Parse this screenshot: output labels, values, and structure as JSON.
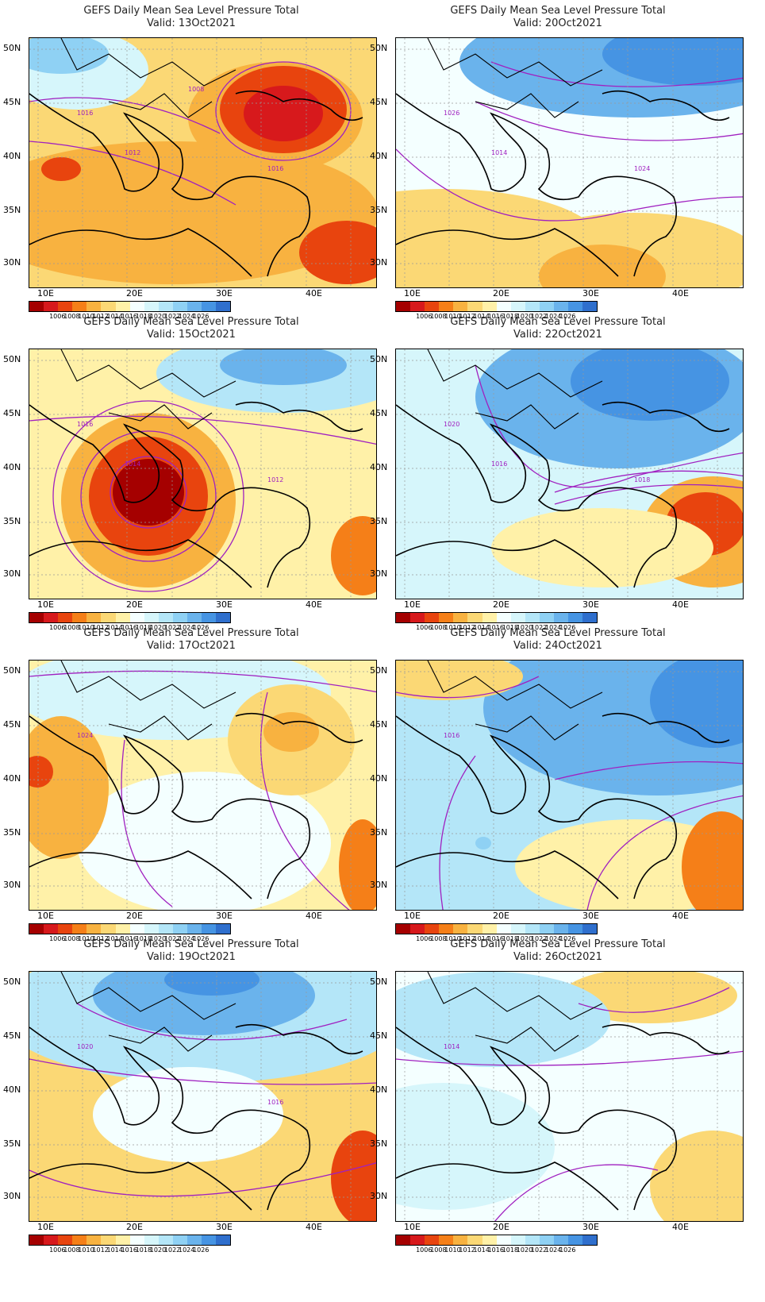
{
  "title_line1": "GEFS Daily Mean Sea Level Pressure Total",
  "panels": [
    {
      "valid": "Valid: 13Oct2021",
      "theme": "warm_ne_low",
      "labels": [
        "1016",
        "1016",
        "1012",
        "1008"
      ]
    },
    {
      "valid": "Valid: 20Oct2021",
      "theme": "cool_north",
      "labels": [
        "1026",
        "1024",
        "1014"
      ]
    },
    {
      "valid": "Valid: 15Oct2021",
      "theme": "greek_low",
      "labels": [
        "1016",
        "1012",
        "1014"
      ]
    },
    {
      "valid": "Valid: 22Oct2021",
      "theme": "cool_nw_low_se",
      "labels": [
        "1020",
        "1018",
        "1016"
      ]
    },
    {
      "valid": "Valid: 17Oct2021",
      "theme": "mixed",
      "labels": [
        "1024"
      ]
    },
    {
      "valid": "Valid: 24Oct2021",
      "theme": "high_ne",
      "labels": [
        "1016"
      ]
    },
    {
      "valid": "Valid: 19Oct2021",
      "theme": "cool_north2",
      "labels": [
        "1020",
        "1016"
      ]
    },
    {
      "valid": "Valid: 26Oct2021",
      "theme": "calm",
      "labels": [
        "1014"
      ]
    }
  ],
  "lat_labels": [
    "50N",
    "45N",
    "40N",
    "35N",
    "30N"
  ],
  "lon_labels": [
    "10E",
    "20E",
    "30E",
    "40E"
  ],
  "colorbar": {
    "colors": [
      "#a50000",
      "#d7191c",
      "#e8440e",
      "#f57f18",
      "#f8b240",
      "#fbd875",
      "#fff1a8",
      "#f4ffff",
      "#d6f6fb",
      "#b4e6f8",
      "#8fd1f4",
      "#6ab3ec",
      "#4694e3",
      "#2f6fcd"
    ],
    "ticks": [
      "1006",
      "1008",
      "1010",
      "1012",
      "1014",
      "1016",
      "1018",
      "1020",
      "1022",
      "1024",
      "1026"
    ]
  }
}
